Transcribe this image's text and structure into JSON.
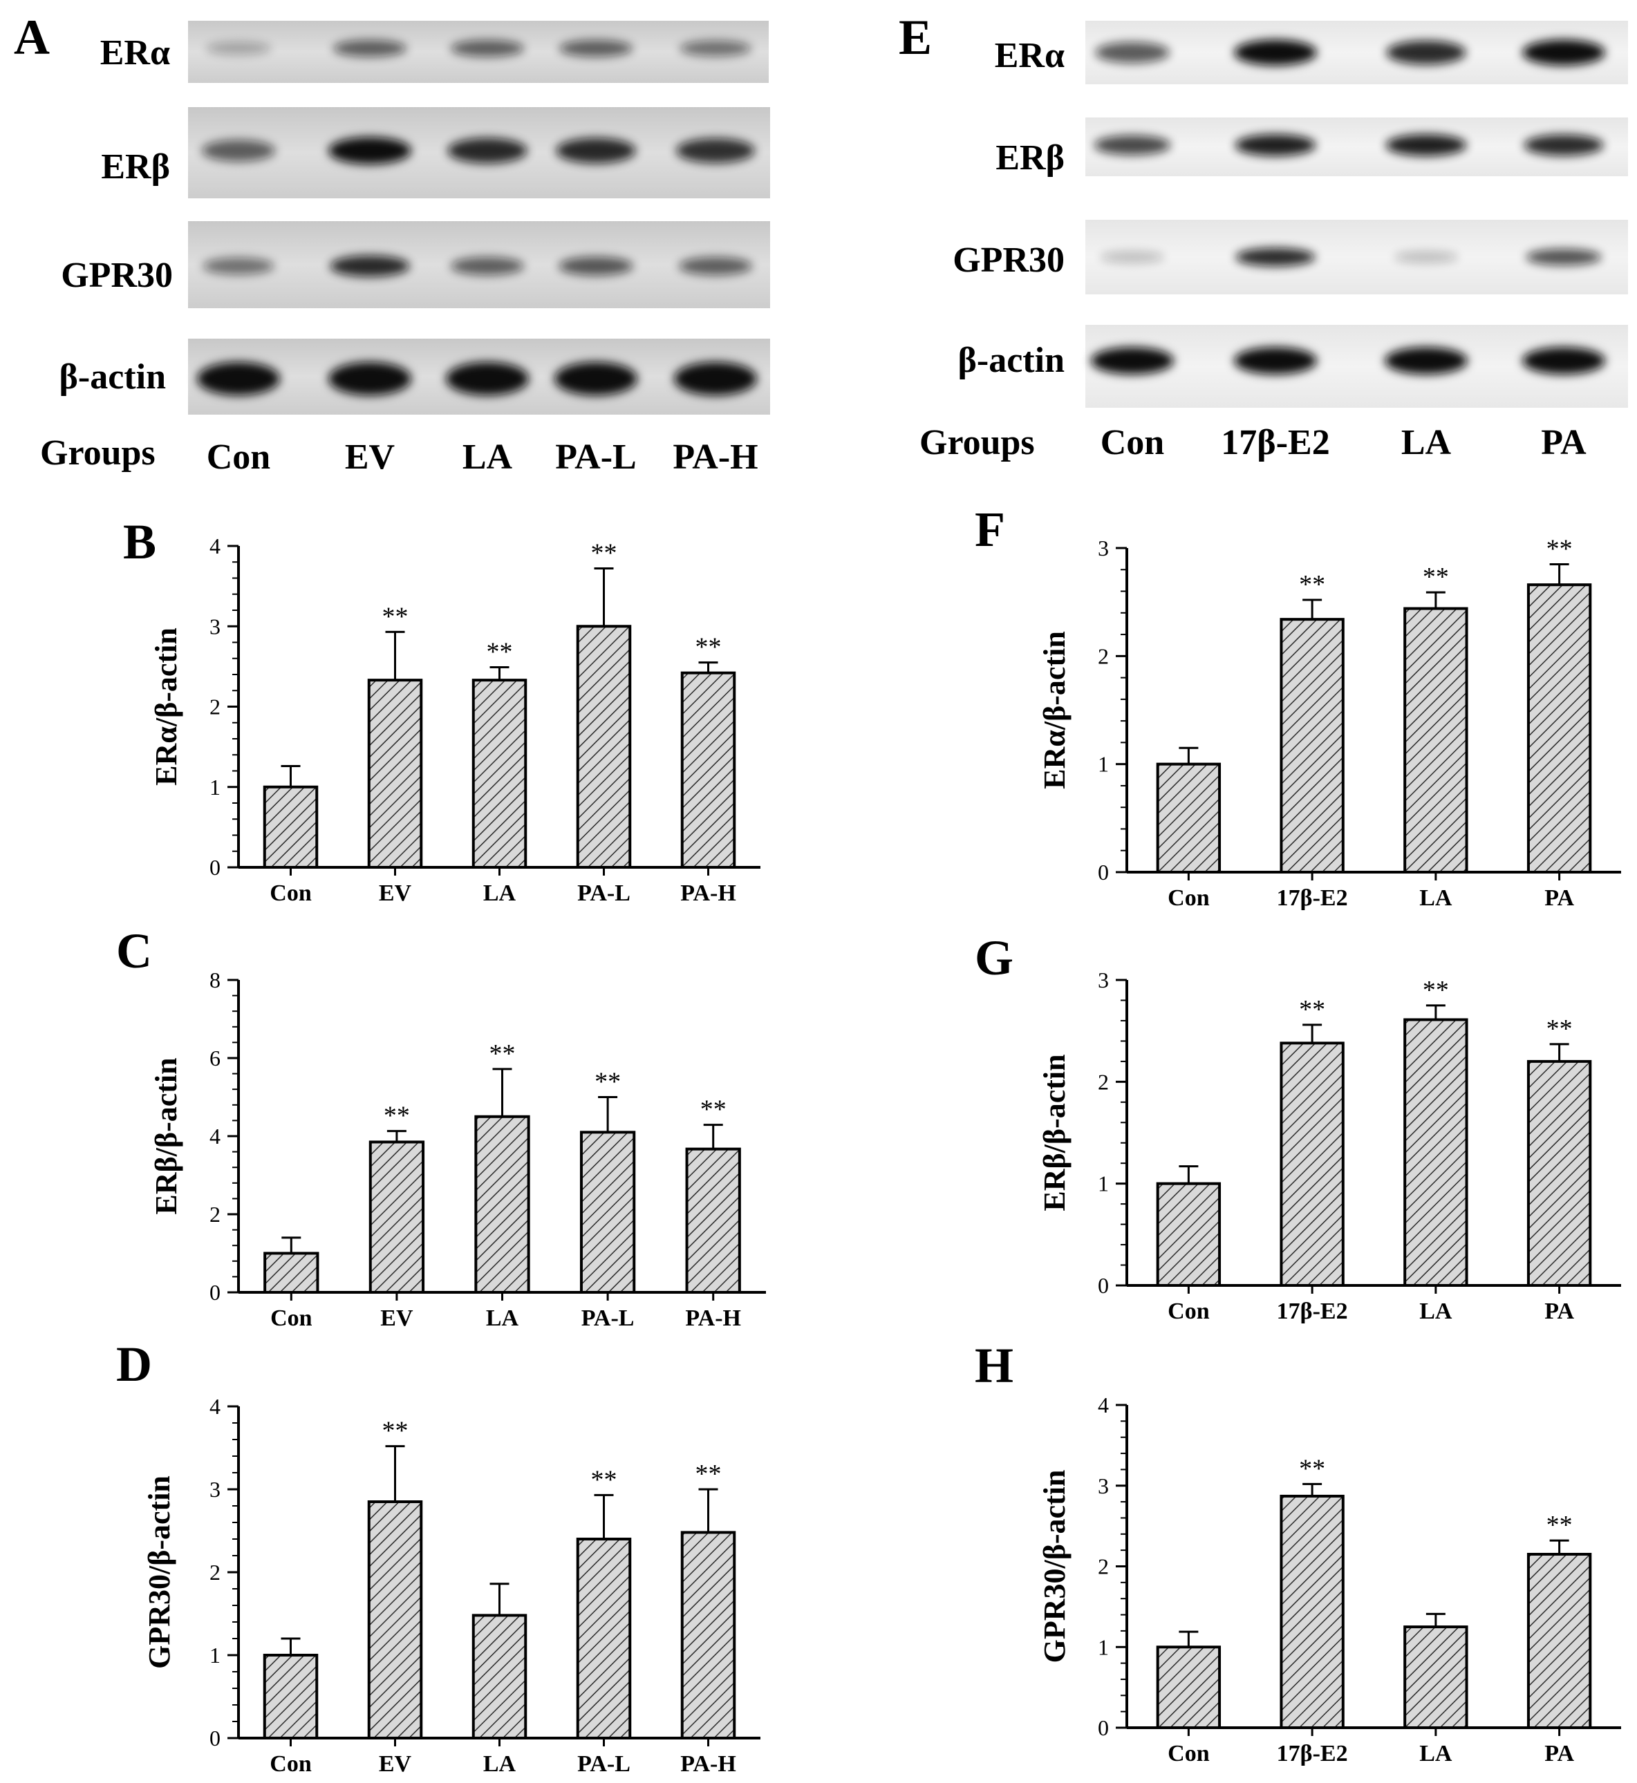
{
  "panels": {
    "A": "A",
    "B": "B",
    "C": "C",
    "D": "D",
    "E": "E",
    "F": "F",
    "G": "G",
    "H": "H"
  },
  "blots": [
    {
      "panel": "A",
      "row_labels": [
        "ERα",
        "ERβ",
        "GPR30",
        "β-actin"
      ],
      "groups_label": "Groups",
      "lanes": [
        "Con",
        "EV",
        "LA",
        "PA-L",
        "PA-H"
      ]
    },
    {
      "panel": "E",
      "row_labels": [
        "ERα",
        "ERβ",
        "GPR30",
        "β-actin"
      ],
      "groups_label": "Groups",
      "lanes": [
        "Con",
        "17β-E2",
        "LA",
        "PA"
      ]
    }
  ],
  "chart_data": [
    {
      "panel": "B",
      "type": "bar",
      "categories": [
        "Con",
        "EV",
        "LA",
        "PA-L",
        "PA-H"
      ],
      "values": [
        1.0,
        2.33,
        2.33,
        3.0,
        2.42
      ],
      "errors": [
        0.26,
        0.6,
        0.16,
        0.72,
        0.13
      ],
      "significance": [
        "",
        "**",
        "**",
        "**",
        "**"
      ],
      "ylabel": "ERα/β-actin",
      "ylim": [
        0,
        4
      ],
      "yticks": [
        0,
        1,
        2,
        3,
        4
      ]
    },
    {
      "panel": "C",
      "type": "bar",
      "categories": [
        "Con",
        "EV",
        "LA",
        "PA-L",
        "PA-H"
      ],
      "values": [
        1.0,
        3.85,
        4.5,
        4.1,
        3.67
      ],
      "errors": [
        0.4,
        0.28,
        1.22,
        0.9,
        0.62
      ],
      "significance": [
        "",
        "**",
        "**",
        "**",
        "**"
      ],
      "ylabel": "ERβ/β-actin",
      "ylim": [
        0,
        8
      ],
      "yticks": [
        0,
        2,
        4,
        6,
        8
      ]
    },
    {
      "panel": "D",
      "type": "bar",
      "categories": [
        "Con",
        "EV",
        "LA",
        "PA-L",
        "PA-H"
      ],
      "values": [
        1.0,
        2.85,
        1.48,
        2.4,
        2.48
      ],
      "errors": [
        0.2,
        0.67,
        0.38,
        0.53,
        0.52
      ],
      "significance": [
        "",
        "**",
        "",
        "**",
        "**"
      ],
      "ylabel": "GPR30/β-actin",
      "ylim": [
        0,
        4
      ],
      "yticks": [
        0,
        1,
        2,
        3,
        4
      ]
    },
    {
      "panel": "F",
      "type": "bar",
      "categories": [
        "Con",
        "17β-E2",
        "LA",
        "PA"
      ],
      "values": [
        1.0,
        2.34,
        2.44,
        2.66
      ],
      "errors": [
        0.15,
        0.18,
        0.15,
        0.19
      ],
      "significance": [
        "",
        "**",
        "**",
        "**"
      ],
      "ylabel": "ERα/β-actin",
      "ylim": [
        0,
        3
      ],
      "yticks": [
        0,
        1,
        2,
        3
      ]
    },
    {
      "panel": "G",
      "type": "bar",
      "categories": [
        "Con",
        "17β-E2",
        "LA",
        "PA"
      ],
      "values": [
        1.0,
        2.38,
        2.61,
        2.2
      ],
      "errors": [
        0.17,
        0.18,
        0.14,
        0.17
      ],
      "significance": [
        "",
        "**",
        "**",
        "**"
      ],
      "ylabel": "ERβ/β-actin",
      "ylim": [
        0,
        3
      ],
      "yticks": [
        0,
        1,
        2,
        3
      ]
    },
    {
      "panel": "H",
      "type": "bar",
      "categories": [
        "Con",
        "17β-E2",
        "LA",
        "PA"
      ],
      "values": [
        1.0,
        2.87,
        1.25,
        2.15
      ],
      "errors": [
        0.19,
        0.15,
        0.16,
        0.17
      ],
      "significance": [
        "",
        "**",
        "",
        "**"
      ],
      "ylabel": "GPR30/β-actin",
      "ylim": [
        0,
        4
      ],
      "yticks": [
        0,
        1,
        2,
        3,
        4
      ]
    }
  ],
  "band_intensity": {
    "A": [
      [
        0.15,
        0.55,
        0.55,
        0.55,
        0.45
      ],
      [
        0.55,
        1.0,
        0.85,
        0.85,
        0.8
      ],
      [
        0.45,
        0.85,
        0.55,
        0.6,
        0.55
      ],
      [
        1.0,
        1.0,
        1.0,
        1.0,
        1.0
      ]
    ],
    "E": [
      [
        0.6,
        1.0,
        0.85,
        1.0
      ],
      [
        0.7,
        0.9,
        0.9,
        0.85
      ],
      [
        0.1,
        0.85,
        0.1,
        0.65
      ],
      [
        1.0,
        1.0,
        1.0,
        1.0
      ]
    ]
  },
  "colors": {
    "bar_fill": "#d9d9d9",
    "hatch": "#2a2a2a",
    "band": "#0d0d0d"
  }
}
